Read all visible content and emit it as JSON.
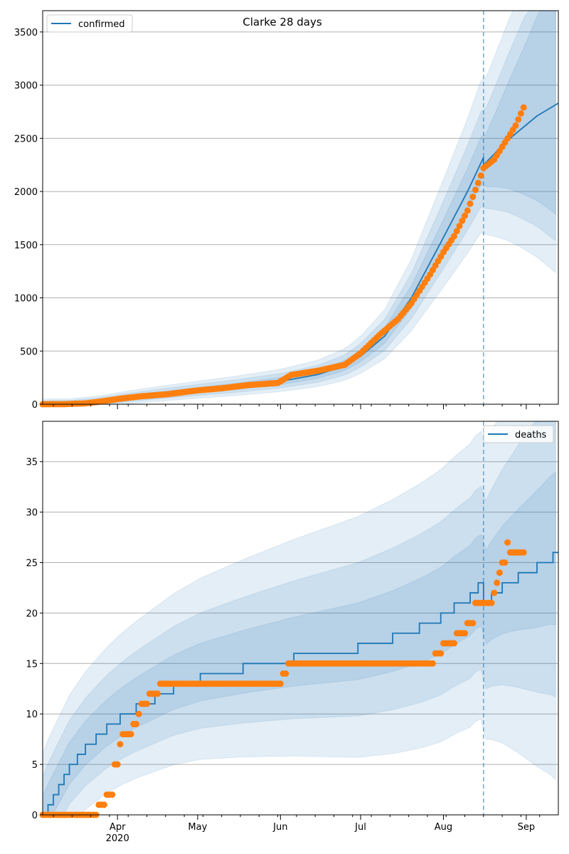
{
  "chart_data": [
    {
      "type": "line",
      "title": "Clarke 28 days",
      "xlabel": "",
      "ylabel": "",
      "xlim": [
        "2020-03-04",
        "2020-09-13"
      ],
      "ylim": [
        0,
        3700
      ],
      "yticks": [
        0,
        500,
        1000,
        1500,
        2000,
        2500,
        3000,
        3500
      ],
      "grid": "horizontal",
      "legend_placement": "top-left",
      "vline_date": "2020-08-16",
      "series": [
        {
          "name": "confirmed",
          "kind": "forecast-median",
          "color": "#1f77b4",
          "points": [
            [
              "2020-03-04",
              2
            ],
            [
              "2020-03-15",
              6
            ],
            [
              "2020-03-25",
              25
            ],
            [
              "2020-04-05",
              60
            ],
            [
              "2020-04-15",
              88
            ],
            [
              "2020-05-01",
              130
            ],
            [
              "2020-05-15",
              165
            ],
            [
              "2020-06-01",
              215
            ],
            [
              "2020-06-15",
              280
            ],
            [
              "2020-06-25",
              360
            ],
            [
              "2020-07-01",
              450
            ],
            [
              "2020-07-10",
              640
            ],
            [
              "2020-07-20",
              1000
            ],
            [
              "2020-07-31",
              1520
            ],
            [
              "2020-08-10",
              2000
            ],
            [
              "2020-08-16",
              2320
            ],
            [
              "2020-08-16",
              2250
            ],
            [
              "2020-08-25",
              2480
            ],
            [
              "2020-09-05",
              2710
            ],
            [
              "2020-09-13",
              2830
            ]
          ]
        },
        {
          "name": "",
          "kind": "observed",
          "color": "#ff7f0e",
          "points": [
            [
              "2020-03-04",
              0
            ],
            [
              "2020-03-12",
              1
            ],
            [
              "2020-03-20",
              8
            ],
            [
              "2020-03-27",
              30
            ],
            [
              "2020-04-03",
              55
            ],
            [
              "2020-04-10",
              75
            ],
            [
              "2020-04-20",
              95
            ],
            [
              "2020-05-01",
              130
            ],
            [
              "2020-05-10",
              150
            ],
            [
              "2020-05-20",
              180
            ],
            [
              "2020-05-31",
              200
            ],
            [
              "2020-06-05",
              275
            ],
            [
              "2020-06-15",
              315
            ],
            [
              "2020-06-25",
              370
            ],
            [
              "2020-07-01",
              480
            ],
            [
              "2020-07-08",
              650
            ],
            [
              "2020-07-15",
              800
            ],
            [
              "2020-07-20",
              950
            ],
            [
              "2020-07-27",
              1220
            ],
            [
              "2020-08-01",
              1430
            ],
            [
              "2020-08-05",
              1580
            ],
            [
              "2020-08-10",
              1820
            ],
            [
              "2020-08-14",
              2080
            ],
            [
              "2020-08-16",
              2220
            ],
            [
              "2020-08-20",
              2300
            ],
            [
              "2020-08-24",
              2460
            ],
            [
              "2020-08-28",
              2620
            ],
            [
              "2020-08-31",
              2790
            ]
          ]
        }
      ]
    },
    {
      "type": "line",
      "title": "",
      "xlabel": "",
      "ylabel": "",
      "xlim": [
        "2020-03-04",
        "2020-09-13"
      ],
      "ylim": [
        0,
        39
      ],
      "yticks": [
        0,
        5,
        10,
        15,
        20,
        25,
        30,
        35
      ],
      "xticks": [
        {
          "date": "2020-04-01",
          "label": "Apr"
        },
        {
          "date": "2020-05-01",
          "label": "May"
        },
        {
          "date": "2020-06-01",
          "label": "Jun"
        },
        {
          "date": "2020-07-01",
          "label": "Jul"
        },
        {
          "date": "2020-08-01",
          "label": "Aug"
        },
        {
          "date": "2020-09-01",
          "label": "Sep"
        }
      ],
      "year_label": "2020",
      "grid": "horizontal",
      "legend_placement": "top-right",
      "vline_date": "2020-08-16",
      "series": [
        {
          "name": "deaths",
          "kind": "forecast-median",
          "color": "#1f77b4",
          "points": [
            [
              "2020-03-04",
              0
            ],
            [
              "2020-03-06",
              1
            ],
            [
              "2020-03-08",
              2
            ],
            [
              "2020-03-10",
              3
            ],
            [
              "2020-03-12",
              4
            ],
            [
              "2020-03-14",
              5
            ],
            [
              "2020-03-17",
              6
            ],
            [
              "2020-03-20",
              7
            ],
            [
              "2020-03-24",
              8
            ],
            [
              "2020-03-28",
              9
            ],
            [
              "2020-04-02",
              10
            ],
            [
              "2020-04-08",
              11
            ],
            [
              "2020-04-15",
              12
            ],
            [
              "2020-04-22",
              13
            ],
            [
              "2020-05-02",
              14
            ],
            [
              "2020-05-18",
              15
            ],
            [
              "2020-06-06",
              16
            ],
            [
              "2020-06-30",
              17
            ],
            [
              "2020-07-13",
              18
            ],
            [
              "2020-07-23",
              19
            ],
            [
              "2020-07-31",
              20
            ],
            [
              "2020-08-05",
              21
            ],
            [
              "2020-08-11",
              22
            ],
            [
              "2020-08-14",
              23
            ],
            [
              "2020-08-16",
              23
            ],
            [
              "2020-08-16",
              21
            ],
            [
              "2020-08-19",
              22
            ],
            [
              "2020-08-23",
              23
            ],
            [
              "2020-08-29",
              24
            ],
            [
              "2020-09-05",
              25
            ],
            [
              "2020-09-11",
              26
            ],
            [
              "2020-09-13",
              26
            ]
          ]
        },
        {
          "name": "",
          "kind": "observed",
          "color": "#ff7f0e",
          "points": [
            [
              "2020-03-04",
              0
            ],
            [
              "2020-03-24",
              0
            ],
            [
              "2020-03-25",
              1
            ],
            [
              "2020-03-28",
              2
            ],
            [
              "2020-03-31",
              5
            ],
            [
              "2020-04-02",
              7
            ],
            [
              "2020-04-03",
              8
            ],
            [
              "2020-04-07",
              9
            ],
            [
              "2020-04-09",
              10
            ],
            [
              "2020-04-10",
              11
            ],
            [
              "2020-04-13",
              12
            ],
            [
              "2020-04-17",
              13
            ],
            [
              "2020-05-31",
              13
            ],
            [
              "2020-06-02",
              14
            ],
            [
              "2020-06-04",
              15
            ],
            [
              "2020-07-28",
              15
            ],
            [
              "2020-07-29",
              16
            ],
            [
              "2020-08-01",
              17
            ],
            [
              "2020-08-06",
              18
            ],
            [
              "2020-08-10",
              19
            ],
            [
              "2020-08-13",
              21
            ],
            [
              "2020-08-19",
              21
            ],
            [
              "2020-08-20",
              22
            ],
            [
              "2020-08-21",
              23
            ],
            [
              "2020-08-22",
              24
            ],
            [
              "2020-08-23",
              25
            ],
            [
              "2020-08-25",
              27
            ],
            [
              "2020-08-26",
              26
            ],
            [
              "2020-08-31",
              26
            ]
          ]
        }
      ]
    }
  ],
  "colors": {
    "forecast": "#1f77b4",
    "observed": "#ff7f0e",
    "band": "#1f77b4",
    "grid": "#b0b0b0"
  }
}
